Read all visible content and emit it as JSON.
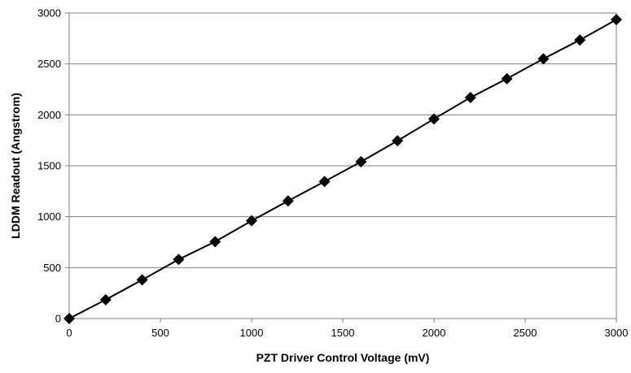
{
  "chart_data": {
    "type": "line",
    "title": "",
    "xlabel": "PZT Driver Control Voltage (mV)",
    "ylabel": "LDDM Readout (Angstrom)",
    "xlim": [
      0,
      3000
    ],
    "ylim": [
      0,
      3000
    ],
    "x_ticks": [
      0,
      500,
      1000,
      1500,
      2000,
      2500,
      3000
    ],
    "y_ticks": [
      0,
      500,
      1000,
      1500,
      2000,
      2500,
      3000
    ],
    "grid": "horizontal major gridlines",
    "legend": "none",
    "marker": "diamond",
    "series": [
      {
        "x": [
          0,
          200,
          400,
          600,
          800,
          1000,
          1200,
          1400,
          1600,
          1800,
          2000,
          2200,
          2400,
          2600,
          2800,
          3000
        ],
        "values": [
          0,
          185,
          380,
          580,
          755,
          960,
          1155,
          1345,
          1540,
          1745,
          1960,
          2170,
          2355,
          2550,
          2735,
          2935
        ]
      }
    ],
    "colors": {
      "line": "#000000",
      "marker": "#000000",
      "grid": "#808080",
      "axis": "#808080"
    }
  }
}
